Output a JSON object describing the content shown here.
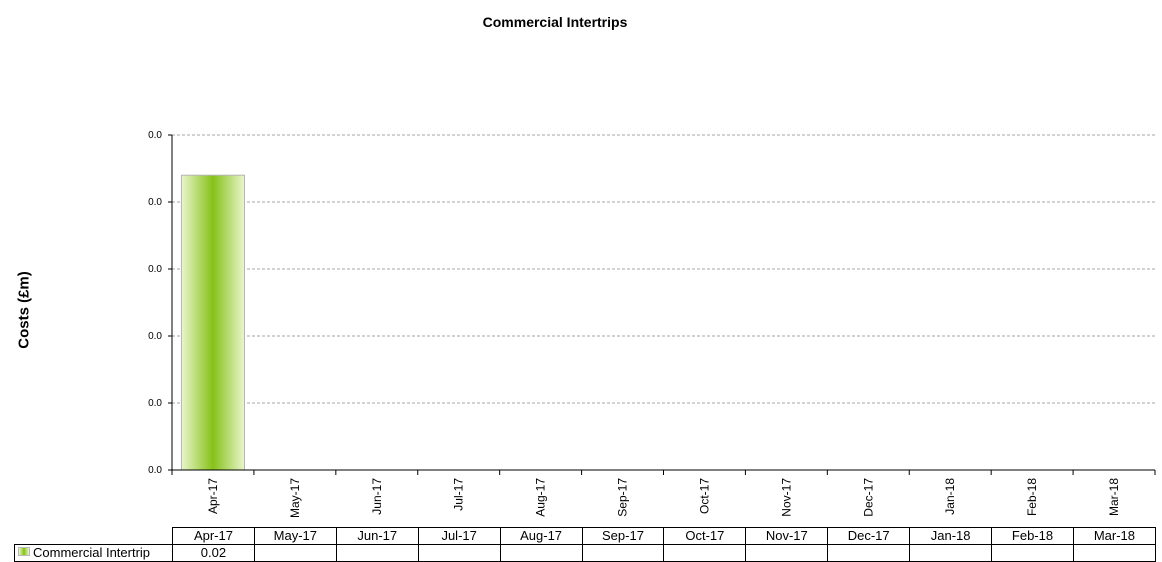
{
  "chart_data": {
    "type": "bar",
    "title": "Commercial Intertrips",
    "ylabel": "Costs (£m)",
    "xlabel": "",
    "categories": [
      "Apr-17",
      "May-17",
      "Jun-17",
      "Jul-17",
      "Aug-17",
      "Sep-17",
      "Oct-17",
      "Nov-17",
      "Dec-17",
      "Jan-18",
      "Feb-18",
      "Mar-18"
    ],
    "y_ticks": [
      "0.0",
      "0.0",
      "0.0",
      "0.0",
      "0.0",
      "0.0"
    ],
    "ylim": [
      0,
      0.025
    ],
    "grid": true,
    "legend": "data-table",
    "series": [
      {
        "name": "Commercial Intertrip",
        "values": [
          0.022,
          null,
          null,
          null,
          null,
          null,
          null,
          null,
          null,
          null,
          null,
          null
        ],
        "labels": [
          "0.02",
          "",
          "",
          "",
          "",
          "",
          "",
          "",
          "",
          "",
          "",
          ""
        ],
        "color": "#86c21a"
      }
    ]
  }
}
